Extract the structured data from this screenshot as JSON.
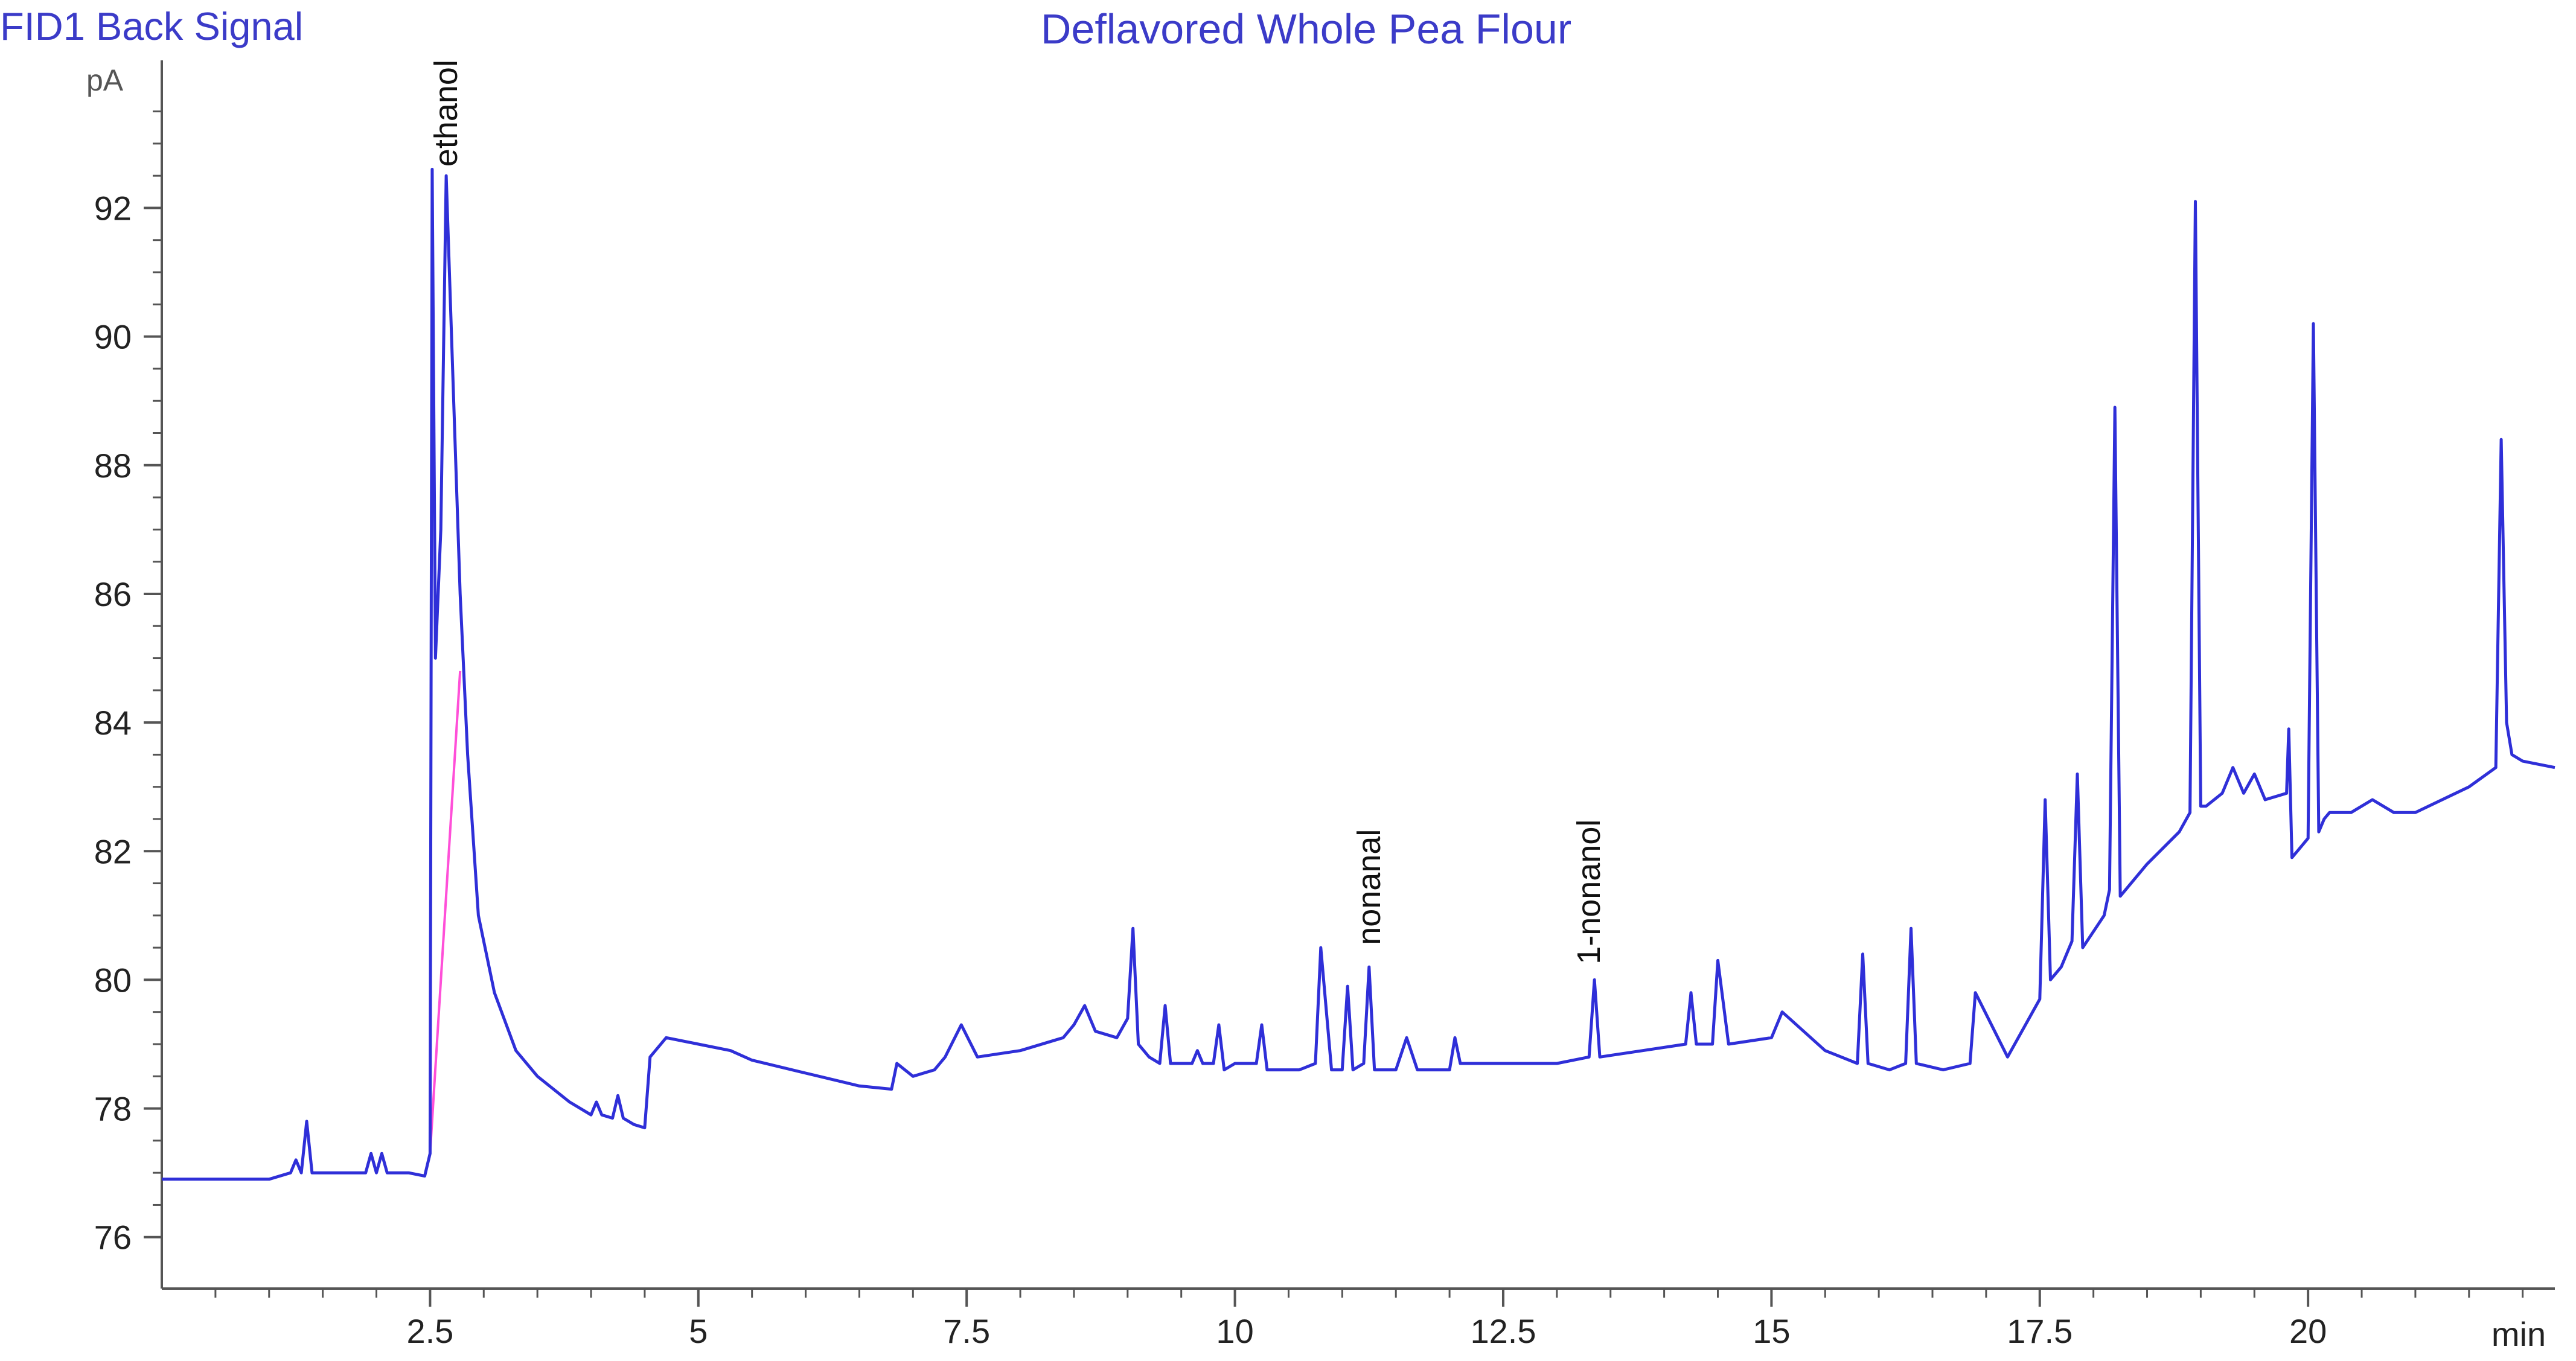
{
  "signal_label": "FID1 Back Signal",
  "chart_data": {
    "type": "line",
    "title": "Deflavored Whole Pea Flour",
    "xlabel": "min",
    "ylabel": "pA",
    "xlim": [
      0,
      22.3
    ],
    "ylim": [
      75.2,
      94.2
    ],
    "x_ticks": [
      2.5,
      5,
      7.5,
      10,
      12.5,
      15,
      17.5,
      20
    ],
    "x_tick_labels": [
      "2.5",
      "5",
      "7.5",
      "10",
      "12.5",
      "15",
      "17.5",
      "20"
    ],
    "y_ticks": [
      76,
      78,
      80,
      82,
      84,
      86,
      88,
      90,
      92
    ],
    "y_tick_labels": [
      "76",
      "78",
      "80",
      "82",
      "84",
      "86",
      "88",
      "90",
      "92"
    ],
    "grid": false,
    "colors": {
      "signal": "#2f2fd8",
      "baseline": "#ff4fd8",
      "axis": "#555555",
      "title": "#3b3bc8"
    },
    "series": [
      {
        "x": [
          0.0,
          0.5,
          1.0,
          1.2,
          1.25,
          1.3,
          1.35,
          1.4,
          1.45,
          1.6,
          1.9,
          1.95,
          2.0,
          2.05,
          2.1,
          2.2,
          2.3,
          2.45,
          2.5,
          2.52,
          2.55,
          2.6,
          2.65,
          2.72,
          2.78,
          2.85,
          2.95,
          3.1,
          3.3,
          3.5,
          3.8,
          4.0,
          4.05,
          4.1,
          4.2,
          4.25,
          4.3,
          4.4,
          4.5,
          4.55,
          4.7,
          5.0,
          5.3,
          5.5,
          6.0,
          6.5,
          6.8,
          6.85,
          7.0,
          7.2,
          7.3,
          7.45,
          7.6,
          8.0,
          8.4,
          8.5,
          8.6,
          8.7,
          8.9,
          9.0,
          9.05,
          9.1,
          9.2,
          9.3,
          9.35,
          9.4,
          9.6,
          9.65,
          9.7,
          9.8,
          9.85,
          9.9,
          10.0,
          10.2,
          10.25,
          10.3,
          10.6,
          10.75,
          10.8,
          10.9,
          11.0,
          11.05,
          11.1,
          11.2,
          11.25,
          11.3,
          11.5,
          11.6,
          11.7,
          12.0,
          12.05,
          12.1,
          12.5,
          12.7,
          13.0,
          13.3,
          13.35,
          13.4,
          13.8,
          14.2,
          14.25,
          14.3,
          14.45,
          14.5,
          14.6,
          15.0,
          15.1,
          15.5,
          15.8,
          15.85,
          15.9,
          16.1,
          16.25,
          16.3,
          16.35,
          16.6,
          16.85,
          16.9,
          17.2,
          17.5,
          17.55,
          17.6,
          17.7,
          17.8,
          17.85,
          17.9,
          18.1,
          18.15,
          18.2,
          18.25,
          18.5,
          18.8,
          18.9,
          18.95,
          19.0,
          19.05,
          19.2,
          19.3,
          19.4,
          19.5,
          19.6,
          19.8,
          19.82,
          19.85,
          19.9,
          20.0,
          20.05,
          20.1,
          20.15,
          20.2,
          20.4,
          20.6,
          20.8,
          21.0,
          21.5,
          21.75,
          21.8,
          21.85,
          21.9,
          22.0,
          22.3
        ],
        "y": [
          76.9,
          76.9,
          76.9,
          77.0,
          77.2,
          77.0,
          77.8,
          77.0,
          77.0,
          77.0,
          77.0,
          77.3,
          77.0,
          77.3,
          77.0,
          77.0,
          77.0,
          76.95,
          77.3,
          92.6,
          85.0,
          87.0,
          92.5,
          89.0,
          86.0,
          83.5,
          81.0,
          79.8,
          78.9,
          78.5,
          78.1,
          77.9,
          78.1,
          77.9,
          77.85,
          78.2,
          77.85,
          77.75,
          77.7,
          78.8,
          79.1,
          79.0,
          78.9,
          78.75,
          78.55,
          78.35,
          78.3,
          78.7,
          78.5,
          78.6,
          78.8,
          79.3,
          78.8,
          78.9,
          79.1,
          79.3,
          79.6,
          79.2,
          79.1,
          79.4,
          80.8,
          79.0,
          78.8,
          78.7,
          79.6,
          78.7,
          78.7,
          78.9,
          78.7,
          78.7,
          79.3,
          78.6,
          78.7,
          78.7,
          79.3,
          78.6,
          78.6,
          78.7,
          80.5,
          78.6,
          78.6,
          79.9,
          78.6,
          78.7,
          80.2,
          78.6,
          78.6,
          79.1,
          78.6,
          78.6,
          79.1,
          78.7,
          78.7,
          78.7,
          78.7,
          78.8,
          80.0,
          78.8,
          78.9,
          79.0,
          79.8,
          79.0,
          79.0,
          80.3,
          79.0,
          79.1,
          79.5,
          78.9,
          78.7,
          80.4,
          78.7,
          78.6,
          78.7,
          80.8,
          78.7,
          78.6,
          78.7,
          79.8,
          78.8,
          79.7,
          82.8,
          80.0,
          80.2,
          80.6,
          83.2,
          80.5,
          81.0,
          81.4,
          88.9,
          81.3,
          81.8,
          82.3,
          82.6,
          92.1,
          82.7,
          82.7,
          82.9,
          83.3,
          82.9,
          83.2,
          82.8,
          82.9,
          83.9,
          81.9,
          82.0,
          82.2,
          90.2,
          82.3,
          82.5,
          82.6,
          82.6,
          82.8,
          82.6,
          82.6,
          83.0,
          83.3,
          88.4,
          84.0,
          83.5,
          83.4,
          83.3
        ]
      }
    ],
    "annotations": [
      {
        "text": "ethanol",
        "x": 2.65,
        "y": 92.5
      },
      {
        "text": "nonanal",
        "x": 11.25,
        "y": 80.4
      },
      {
        "text": "1-nonanol",
        "x": 13.3,
        "y": 80.1
      }
    ]
  }
}
